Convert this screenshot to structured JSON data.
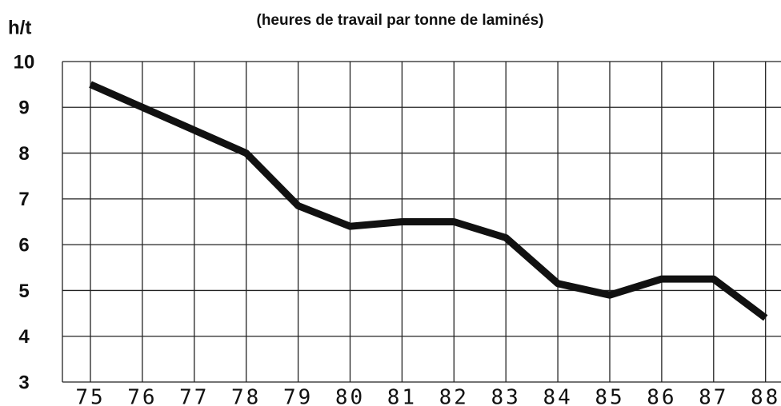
{
  "chart_data": {
    "type": "line",
    "title": "(heures de travail par tonne de laminés)",
    "ylabel": "h/t",
    "categories": [
      "75",
      "76",
      "77",
      "78",
      "79",
      "80",
      "81",
      "82",
      "83",
      "84",
      "85",
      "86",
      "87",
      "88"
    ],
    "series": [
      {
        "color": "#111111",
        "values": [
          9.5,
          9.0,
          8.5,
          8.0,
          6.85,
          6.4,
          6.5,
          6.5,
          6.15,
          5.15,
          4.9,
          5.25,
          5.25,
          4.4
        ]
      }
    ],
    "ylim": [
      3,
      10
    ],
    "yticks": [
      3,
      4,
      5,
      6,
      7,
      8,
      9,
      10
    ],
    "grid": true
  }
}
